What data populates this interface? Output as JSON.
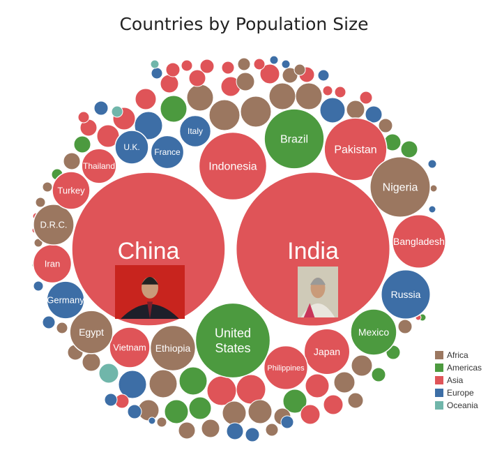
{
  "chart_data": {
    "type": "packed-bubble",
    "title": "Countries by Population Size",
    "size_measure": "population (millions, approx.)",
    "legend": [
      {
        "name": "Africa",
        "color": "#9b7760"
      },
      {
        "name": "Americas",
        "color": "#4c9a3f"
      },
      {
        "name": "Asia",
        "color": "#df5458"
      },
      {
        "name": "Europe",
        "color": "#3d6ea6"
      },
      {
        "name": "Oceania",
        "color": "#70b6aa"
      }
    ],
    "legend_position": "bottom-right",
    "labeled": [
      {
        "name": "China",
        "region": "Asia",
        "population": 1412,
        "photo": "leader-photo"
      },
      {
        "name": "India",
        "region": "Asia",
        "population": 1420,
        "photo": "leader-photo"
      },
      {
        "name": "Indonesia",
        "region": "Asia",
        "population": 275
      },
      {
        "name": "United States",
        "region": "Americas",
        "population": 335
      },
      {
        "name": "Brazil",
        "region": "Americas",
        "population": 215
      },
      {
        "name": "Pakistan",
        "region": "Asia",
        "population": 235
      },
      {
        "name": "Nigeria",
        "region": "Africa",
        "population": 218
      },
      {
        "name": "Bangladesh",
        "region": "Asia",
        "population": 171
      },
      {
        "name": "Russia",
        "region": "Europe",
        "population": 145
      },
      {
        "name": "Mexico",
        "region": "Americas",
        "population": 127
      },
      {
        "name": "Japan",
        "region": "Asia",
        "population": 125
      },
      {
        "name": "Philippines",
        "region": "Asia",
        "population": 115
      },
      {
        "name": "Ethiopia",
        "region": "Africa",
        "population": 123
      },
      {
        "name": "Vietnam",
        "region": "Asia",
        "population": 98
      },
      {
        "name": "Egypt",
        "region": "Africa",
        "population": 111
      },
      {
        "name": "Germany",
        "region": "Europe",
        "population": 84
      },
      {
        "name": "Iran",
        "region": "Asia",
        "population": 88
      },
      {
        "name": "D.R.C.",
        "region": "Africa",
        "population": 99
      },
      {
        "name": "Turkey",
        "region": "Asia",
        "population": 85
      },
      {
        "name": "Thailand",
        "region": "Asia",
        "population": 72
      },
      {
        "name": "U.K.",
        "region": "Europe",
        "population": 67
      },
      {
        "name": "France",
        "region": "Europe",
        "population": 65
      },
      {
        "name": "Italy",
        "region": "Europe",
        "population": 59
      }
    ]
  }
}
